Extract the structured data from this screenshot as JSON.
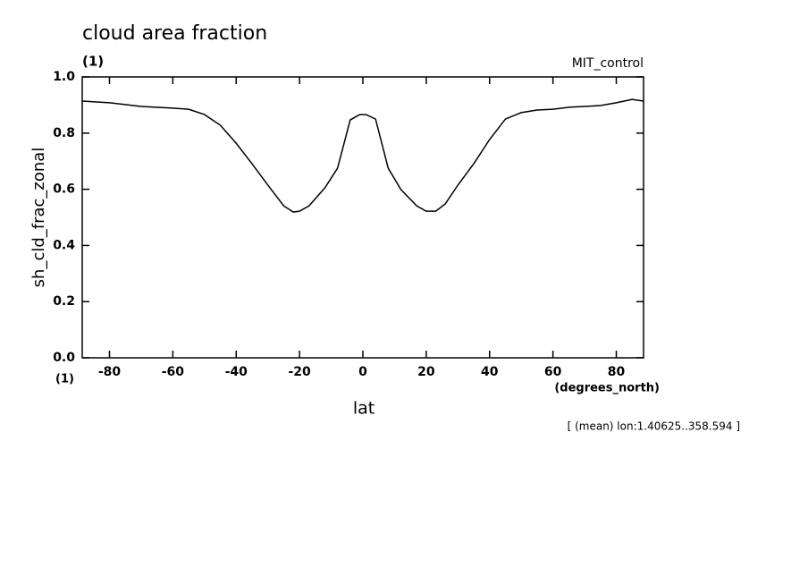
{
  "chart_data": {
    "type": "line",
    "title": "cloud area fraction",
    "subtitle": "(1)",
    "dataset": "MIT_control",
    "y_label": "sh_cld_frac_zonal",
    "x_label": "lat",
    "x_units": "(degrees_north)",
    "y_units": "(1)",
    "footnote": "[ (mean) lon:1.40625..358.594 ]",
    "x": [
      -88.6,
      -80,
      -70,
      -60,
      -55,
      -50,
      -45,
      -40,
      -35,
      -30,
      -25,
      -22,
      -20,
      -17,
      -12,
      -8,
      -4,
      -1,
      1,
      4,
      8,
      12,
      17,
      20,
      23,
      26,
      30,
      35,
      40,
      45,
      50,
      55,
      60,
      65,
      70,
      75,
      80,
      85,
      88.6
    ],
    "series": [
      {
        "name": "sh_cld_frac_zonal",
        "color": "#000000",
        "values": [
          0.914,
          0.908,
          0.895,
          0.889,
          0.885,
          0.866,
          0.828,
          0.764,
          0.691,
          0.615,
          0.541,
          0.519,
          0.522,
          0.541,
          0.605,
          0.675,
          0.847,
          0.866,
          0.866,
          0.85,
          0.675,
          0.599,
          0.541,
          0.522,
          0.522,
          0.548,
          0.615,
          0.691,
          0.777,
          0.85,
          0.873,
          0.882,
          0.885,
          0.892,
          0.895,
          0.898,
          0.908,
          0.92,
          0.914
        ]
      }
    ],
    "xlim": [
      -88.6,
      88.6
    ],
    "ylim": [
      0,
      1
    ],
    "xticks": [
      -80,
      -60,
      -40,
      -20,
      0,
      20,
      40,
      60,
      80
    ],
    "yticks": [
      {
        "value": 0,
        "label": "0.0"
      },
      0.2,
      0.4,
      0.6,
      0.8,
      {
        "value": 1,
        "label": "1.0"
      }
    ],
    "grid": false
  }
}
